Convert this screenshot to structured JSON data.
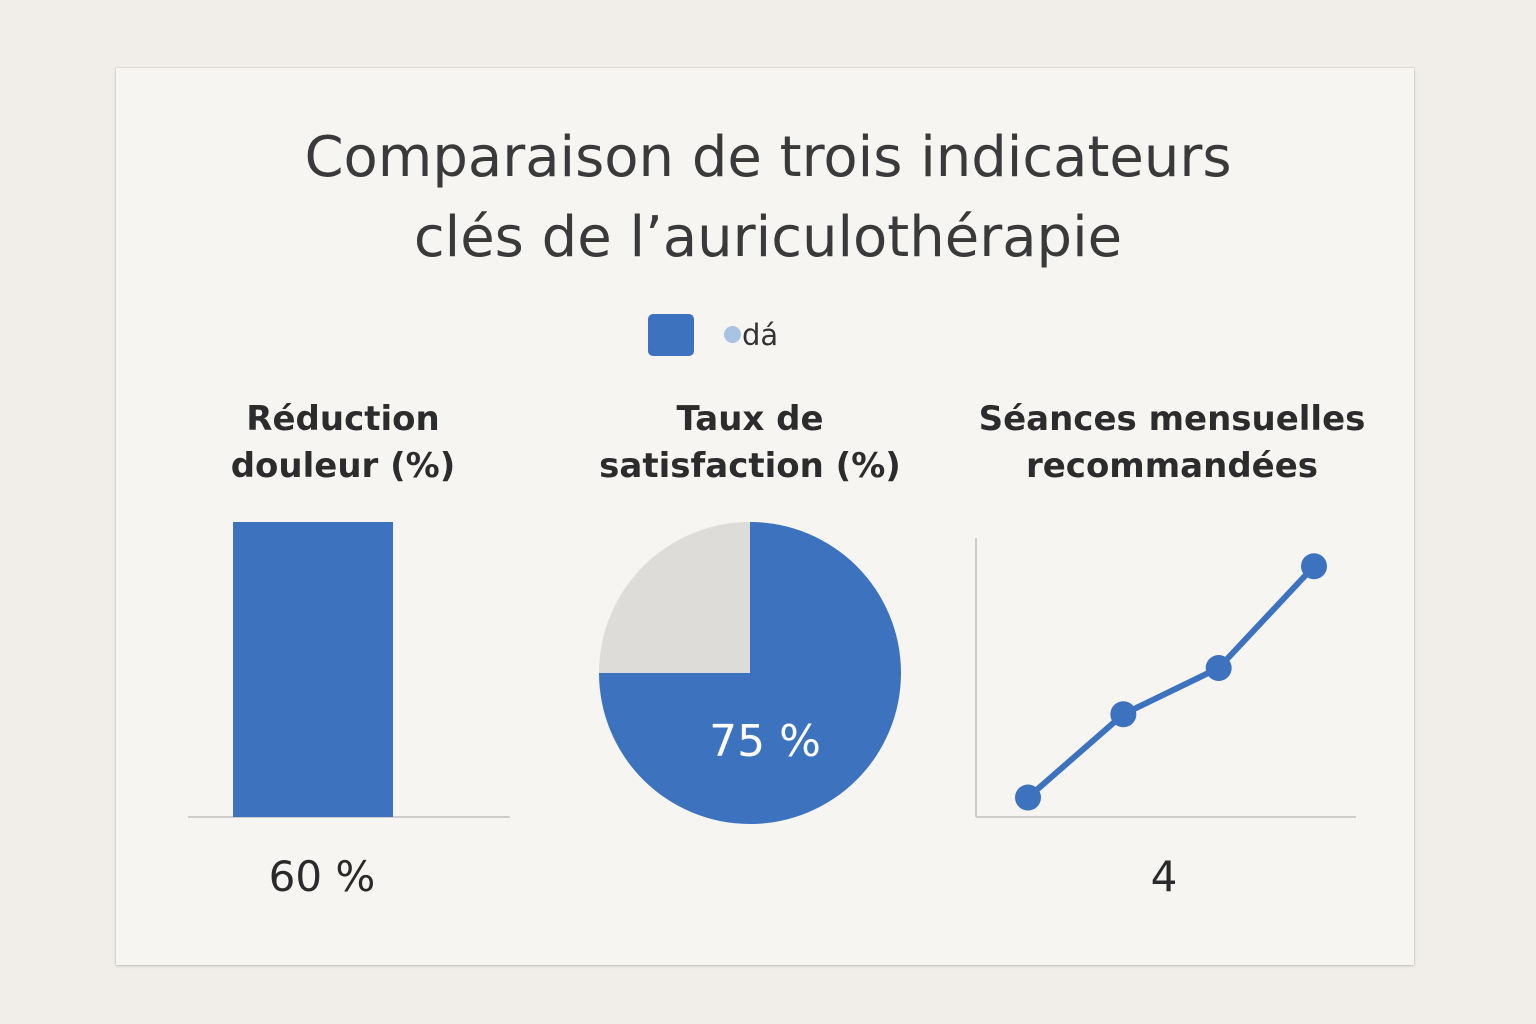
{
  "colors": {
    "accent": "#3d72bf",
    "pie_rest": "#dedcd8",
    "legend_dot": "#a9c3e3",
    "axis": "#cfcdc9"
  },
  "chart_data": [
    {
      "type": "title",
      "title_lines": [
        "Comparaison de trois indicateurs",
        "clés de l’auriculothérapie"
      ],
      "legend": {
        "text": "dá"
      }
    },
    {
      "type": "bar",
      "title_lines": [
        "Réduction",
        "douleur (%)"
      ],
      "categories": [
        ""
      ],
      "values": [
        60
      ],
      "value_label": "60 %"
    },
    {
      "type": "pie",
      "title_lines": [
        "Taux de",
        "satisfaction (%)"
      ],
      "slices": [
        {
          "value": 75,
          "label": "75 %"
        },
        {
          "value": 25,
          "label": ""
        }
      ]
    },
    {
      "type": "line",
      "title_lines": [
        "Séances mensuelles",
        "recommandées"
      ],
      "x": [
        1,
        2,
        3,
        4
      ],
      "y": [
        1.0,
        1.9,
        2.4,
        3.5
      ],
      "ylim": [
        0,
        4
      ],
      "value_label": "4"
    }
  ]
}
